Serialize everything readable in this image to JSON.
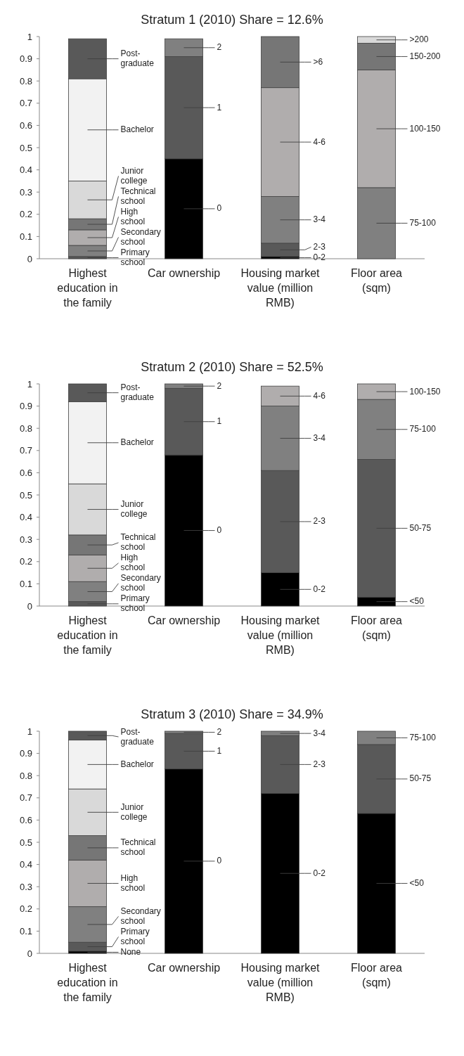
{
  "chart_data": [
    {
      "type": "bar",
      "title": "Stratum 1 (2010) Share = 12.6%",
      "stacked": true,
      "legend": "right",
      "categories": [
        "Highest education in the family",
        "Car ownership",
        "Housing market value (million RMB)",
        "Floor area (sqm)"
      ],
      "ylim": [
        0,
        1
      ],
      "yticks": [
        0,
        0.1,
        0.2,
        0.3,
        0.4,
        0.5,
        0.6,
        0.7,
        0.8,
        0.9,
        1
      ],
      "series": [
        {
          "name": "Primary school",
          "color": "#595959",
          "values": [
            0.01,
            null,
            null,
            null
          ]
        },
        {
          "name": "Secondary school",
          "color": "#808080",
          "values": [
            0.05,
            null,
            null,
            null
          ]
        },
        {
          "name": "High school",
          "color": "#b0adad",
          "values": [
            0.07,
            null,
            null,
            null
          ]
        },
        {
          "name": "Technical school",
          "color": "#767676",
          "values": [
            0.05,
            null,
            null,
            null
          ]
        },
        {
          "name": "Junior college",
          "color": "#d9d9d9",
          "values": [
            0.17,
            null,
            null,
            null
          ]
        },
        {
          "name": "Bachelor",
          "color": "#f2f2f2",
          "values": [
            0.46,
            null,
            null,
            null
          ]
        },
        {
          "name": "Post-graduate",
          "color": "#595959",
          "values": [
            0.18,
            null,
            null,
            null
          ]
        },
        {
          "name": "0",
          "color": "#000000",
          "values": [
            null,
            0.45,
            null,
            null
          ]
        },
        {
          "name": "1",
          "color": "#595959",
          "values": [
            null,
            0.46,
            null,
            null
          ]
        },
        {
          "name": "2",
          "color": "#808080",
          "values": [
            null,
            0.08,
            null,
            null
          ]
        },
        {
          "name": "0-2",
          "color": "#000000",
          "values": [
            null,
            null,
            0.01,
            null
          ]
        },
        {
          "name": "2-3",
          "color": "#595959",
          "values": [
            null,
            null,
            0.06,
            null
          ]
        },
        {
          "name": "3-4",
          "color": "#808080",
          "values": [
            null,
            null,
            0.21,
            null
          ]
        },
        {
          "name": "4-6",
          "color": "#b0adad",
          "values": [
            null,
            null,
            0.49,
            null
          ]
        },
        {
          "name": ">6",
          "color": "#767676",
          "values": [
            null,
            null,
            0.23,
            null
          ]
        },
        {
          "name": "75-100",
          "color": "#808080",
          "values": [
            null,
            null,
            null,
            0.32
          ]
        },
        {
          "name": "100-150",
          "color": "#b0adad",
          "values": [
            null,
            null,
            null,
            0.53
          ]
        },
        {
          "name": "150-200",
          "color": "#767676",
          "values": [
            null,
            null,
            null,
            0.12
          ]
        },
        {
          "name": ">200",
          "color": "#d9d9d9",
          "values": [
            null,
            null,
            null,
            0.03
          ]
        }
      ]
    },
    {
      "type": "bar",
      "title": "Stratum 2 (2010) Share = 52.5%",
      "stacked": true,
      "legend": "right",
      "categories": [
        "Highest education in the family",
        "Car ownership",
        "Housing market value (million RMB)",
        "Floor area (sqm)"
      ],
      "ylim": [
        0,
        1
      ],
      "yticks": [
        0,
        0.1,
        0.2,
        0.3,
        0.4,
        0.5,
        0.6,
        0.7,
        0.8,
        0.9,
        1
      ],
      "series": [
        {
          "name": "Primary school",
          "color": "#595959",
          "values": [
            0.02,
            null,
            null,
            null
          ]
        },
        {
          "name": "Secondary school",
          "color": "#808080",
          "values": [
            0.09,
            null,
            null,
            null
          ]
        },
        {
          "name": "High school",
          "color": "#b0adad",
          "values": [
            0.12,
            null,
            null,
            null
          ]
        },
        {
          "name": "Technical school",
          "color": "#767676",
          "values": [
            0.09,
            null,
            null,
            null
          ]
        },
        {
          "name": "Junior college",
          "color": "#d9d9d9",
          "values": [
            0.23,
            null,
            null,
            null
          ]
        },
        {
          "name": "Bachelor",
          "color": "#f2f2f2",
          "values": [
            0.37,
            null,
            null,
            null
          ]
        },
        {
          "name": "Post-graduate",
          "color": "#595959",
          "values": [
            0.08,
            null,
            null,
            null
          ]
        },
        {
          "name": "0",
          "color": "#000000",
          "values": [
            null,
            0.68,
            null,
            null
          ]
        },
        {
          "name": "1",
          "color": "#595959",
          "values": [
            null,
            0.3,
            null,
            null
          ]
        },
        {
          "name": "2",
          "color": "#808080",
          "values": [
            null,
            0.02,
            null,
            null
          ]
        },
        {
          "name": "0-2",
          "color": "#000000",
          "values": [
            null,
            null,
            0.15,
            null
          ]
        },
        {
          "name": "2-3",
          "color": "#595959",
          "values": [
            null,
            null,
            0.46,
            null
          ]
        },
        {
          "name": "3-4",
          "color": "#808080",
          "values": [
            null,
            null,
            0.29,
            null
          ]
        },
        {
          "name": "4-6",
          "color": "#b0adad",
          "values": [
            null,
            null,
            0.09,
            null
          ]
        },
        {
          "name": "<50",
          "color": "#000000",
          "values": [
            null,
            null,
            null,
            0.04
          ]
        },
        {
          "name": "50-75",
          "color": "#595959",
          "values": [
            null,
            null,
            null,
            0.62
          ]
        },
        {
          "name": "75-100",
          "color": "#808080",
          "values": [
            null,
            null,
            null,
            0.27
          ]
        },
        {
          "name": "100-150",
          "color": "#b0adad",
          "values": [
            null,
            null,
            null,
            0.07
          ]
        }
      ]
    },
    {
      "type": "bar",
      "title": "Stratum 3 (2010) Share = 34.9%",
      "stacked": true,
      "legend": "right",
      "categories": [
        "Highest education in the family",
        "Car ownership",
        "Housing market value (million RMB)",
        "Floor area (sqm)"
      ],
      "ylim": [
        0,
        1
      ],
      "yticks": [
        0,
        0.1,
        0.2,
        0.3,
        0.4,
        0.5,
        0.6,
        0.7,
        0.8,
        0.9,
        1
      ],
      "series": [
        {
          "name": "None",
          "color": "#000000",
          "values": [
            0.01,
            null,
            null,
            null
          ]
        },
        {
          "name": "Primary school",
          "color": "#595959",
          "values": [
            0.04,
            null,
            null,
            null
          ]
        },
        {
          "name": "Secondary school",
          "color": "#808080",
          "values": [
            0.16,
            null,
            null,
            null
          ]
        },
        {
          "name": "High school",
          "color": "#b0adad",
          "values": [
            0.21,
            null,
            null,
            null
          ]
        },
        {
          "name": "Technical school",
          "color": "#767676",
          "values": [
            0.11,
            null,
            null,
            null
          ]
        },
        {
          "name": "Junior college",
          "color": "#d9d9d9",
          "values": [
            0.21,
            null,
            null,
            null
          ]
        },
        {
          "name": "Bachelor",
          "color": "#f2f2f2",
          "values": [
            0.22,
            null,
            null,
            null
          ]
        },
        {
          "name": "Post-graduate",
          "color": "#595959",
          "values": [
            0.04,
            null,
            null,
            null
          ]
        },
        {
          "name": "0",
          "color": "#000000",
          "values": [
            null,
            0.83,
            null,
            null
          ]
        },
        {
          "name": "1",
          "color": "#595959",
          "values": [
            null,
            0.16,
            null,
            null
          ]
        },
        {
          "name": "2",
          "color": "#808080",
          "values": [
            null,
            0.01,
            null,
            null
          ]
        },
        {
          "name": "0-2",
          "color": "#000000",
          "values": [
            null,
            null,
            0.72,
            null
          ]
        },
        {
          "name": "2-3",
          "color": "#595959",
          "values": [
            null,
            null,
            0.26,
            null
          ]
        },
        {
          "name": "3-4",
          "color": "#808080",
          "values": [
            null,
            null,
            0.02,
            null
          ]
        },
        {
          "name": "<50",
          "color": "#000000",
          "values": [
            null,
            null,
            null,
            0.63
          ]
        },
        {
          "name": "50-75",
          "color": "#595959",
          "values": [
            null,
            null,
            null,
            0.31
          ]
        },
        {
          "name": "75-100",
          "color": "#808080",
          "values": [
            null,
            null,
            null,
            0.06
          ]
        }
      ]
    }
  ]
}
